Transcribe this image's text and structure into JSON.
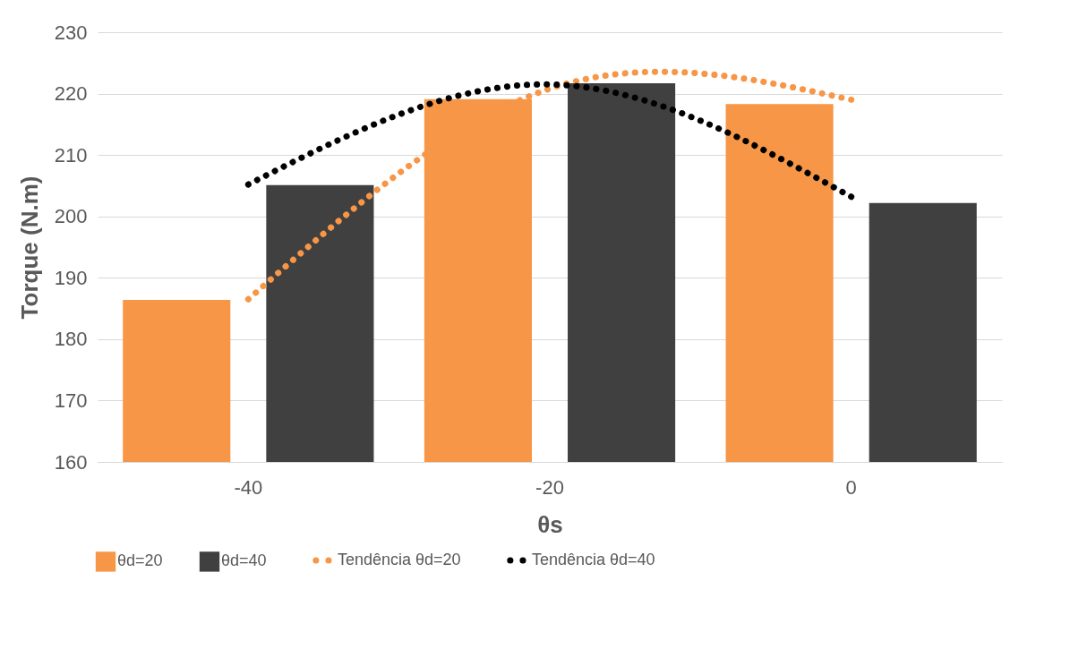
{
  "chart_data": {
    "type": "bar",
    "xlabel": "θs",
    "ylabel": "Torque (N.m)",
    "categories": [
      "-40",
      "-20",
      "0"
    ],
    "series": [
      {
        "name": "θd=20",
        "color": "#f79646",
        "values": [
          186.4,
          219.1,
          218.3
        ]
      },
      {
        "name": "θd=40",
        "color": "#404040",
        "values": [
          205.1,
          221.7,
          202.2
        ]
      },
      {
        "name": "Tendência θd=20",
        "type": "line",
        "color": "#f79646",
        "values": [
          186.5,
          220.8,
          219.0
        ],
        "line_style": "dotted",
        "marker": "none"
      },
      {
        "name": "Tendência θd=40",
        "type": "line",
        "color": "#000000",
        "values": [
          205.2,
          221.5,
          203.2
        ],
        "line_style": "dotted",
        "marker": "none"
      }
    ],
    "ylim": [
      160,
      230
    ],
    "yticks": [
      160,
      170,
      180,
      190,
      200,
      210,
      220,
      230
    ],
    "grid": "y",
    "legend": "bottom"
  }
}
